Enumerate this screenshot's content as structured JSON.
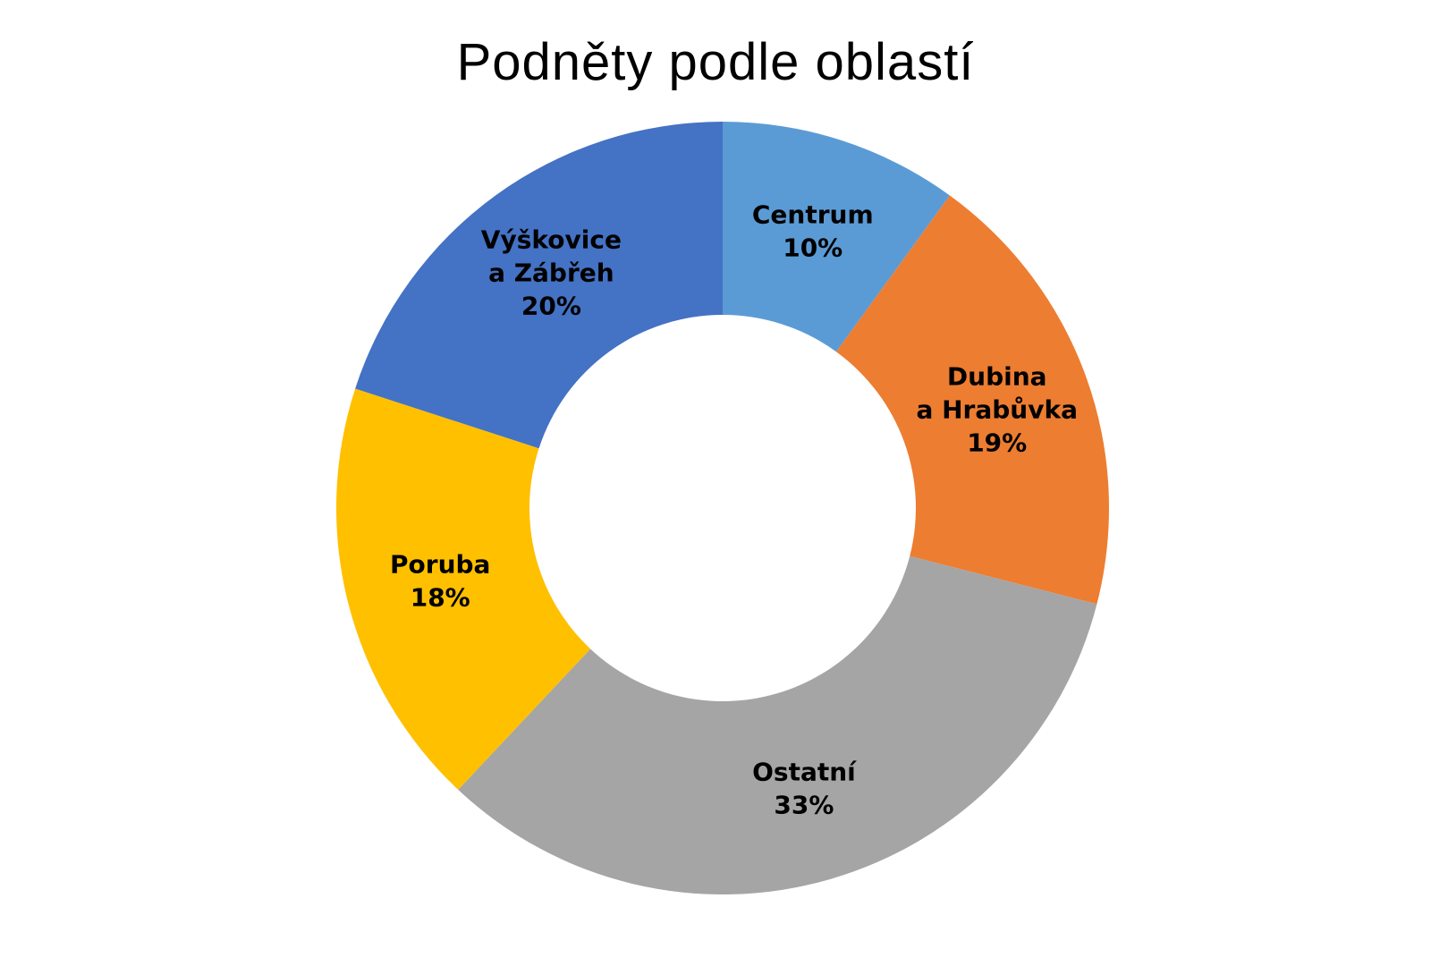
{
  "chart_data": {
    "type": "pie",
    "variant": "donut",
    "title": "Podněty podle oblastí",
    "legend": "none",
    "start_angle_deg": 0,
    "direction": "clockwise",
    "slices": [
      {
        "label_lines": [
          "Centrum"
        ],
        "value": 10,
        "value_label": "10%",
        "color": "#5B9BD5"
      },
      {
        "label_lines": [
          "Dubina",
          "a Hrabůvka"
        ],
        "value": 19,
        "value_label": "19%",
        "color": "#ED7D31"
      },
      {
        "label_lines": [
          "Ostatní"
        ],
        "value": 33,
        "value_label": "33%",
        "color": "#A5A5A5"
      },
      {
        "label_lines": [
          "Poruba"
        ],
        "value": 18,
        "value_label": "18%",
        "color": "#FFC000"
      },
      {
        "label_lines": [
          "Výškovice",
          "a Zábřeh"
        ],
        "value": 20,
        "value_label": "20%",
        "color": "#4472C4"
      }
    ]
  }
}
